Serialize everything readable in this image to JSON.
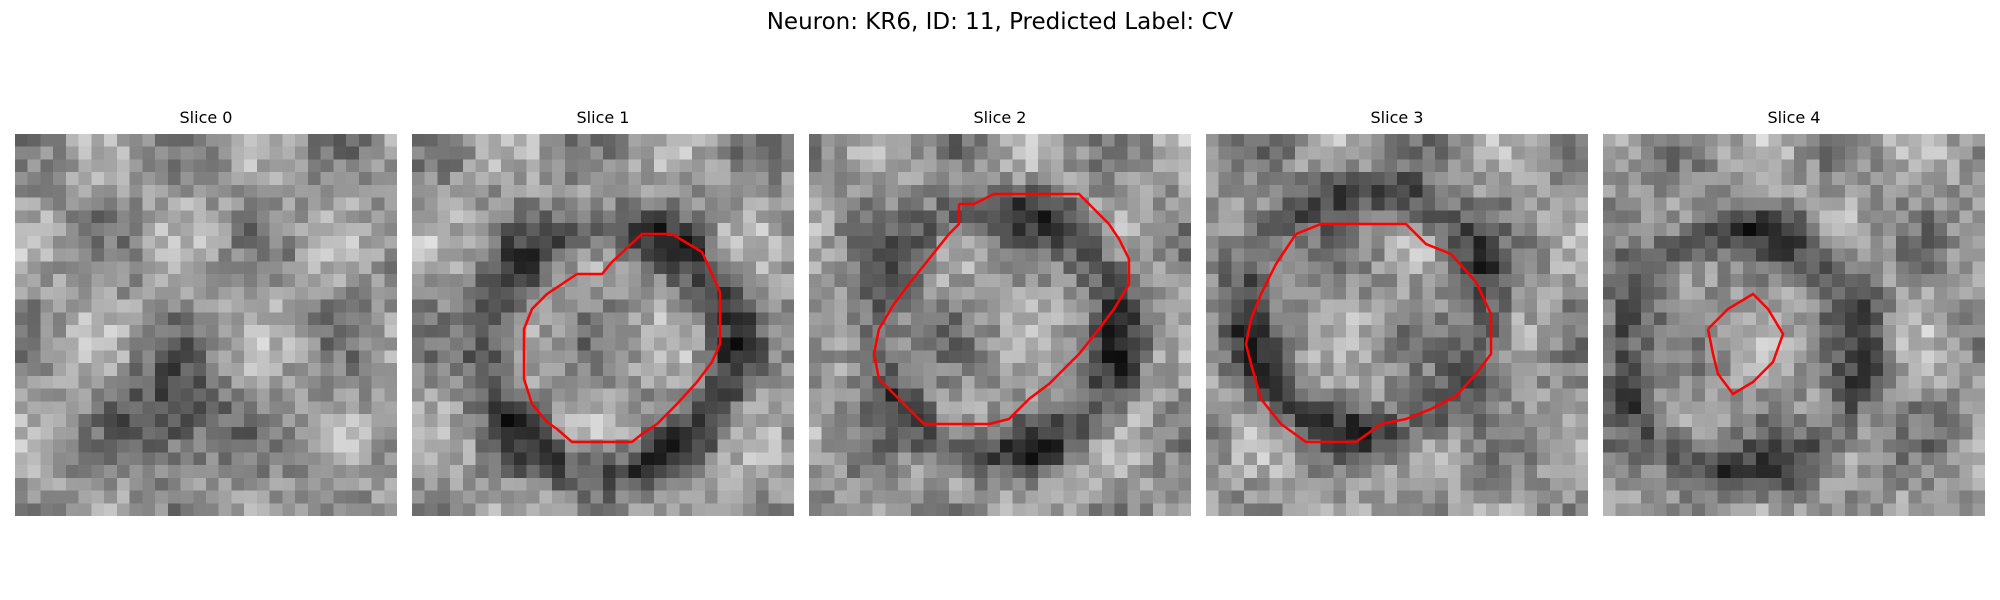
{
  "figure": {
    "title": "Neuron: KR6, ID: 11, Predicted Label: CV",
    "overlay_color": "#ff0000",
    "colormap": "gray",
    "panels": [
      {
        "title": "Slice 0",
        "has_mask": false,
        "seed": 11,
        "dark_center": [
          0.4,
          0.72
        ]
      },
      {
        "title": "Slice 1",
        "has_mask": true,
        "seed": 23,
        "dark_center": [
          0.5,
          0.55
        ]
      },
      {
        "title": "Slice 2",
        "has_mask": true,
        "seed": 37,
        "dark_center": [
          0.48,
          0.5
        ]
      },
      {
        "title": "Slice 3",
        "has_mask": true,
        "seed": 53,
        "dark_center": [
          0.4,
          0.45
        ]
      },
      {
        "title": "Slice 4",
        "has_mask": true,
        "seed": 71,
        "dark_center": [
          0.35,
          0.55
        ]
      }
    ]
  }
}
